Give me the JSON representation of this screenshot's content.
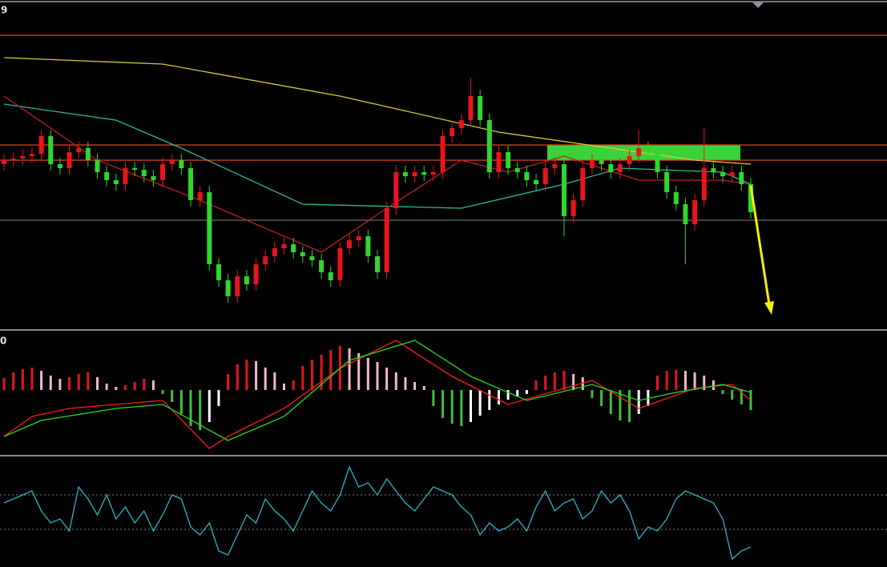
{
  "chart_data": [
    {
      "type": "candlestick",
      "label": "9",
      "ylim": [
        0,
        410
      ],
      "up_color": "#e8141e",
      "down_color": "#2fd62f",
      "open": [
        205,
        210,
        212,
        215,
        218,
        240,
        205,
        200,
        220,
        225,
        210,
        195,
        185,
        180,
        200,
        198,
        190,
        185,
        205,
        210,
        200,
        160,
        170,
        80,
        60,
        40,
        65,
        55,
        80,
        90,
        100,
        105,
        95,
        90,
        85,
        70,
        60,
        100,
        110,
        115,
        90,
        70,
        150,
        195,
        190,
        195,
        192,
        195,
        240,
        250,
        260,
        290,
        260,
        195,
        220,
        200,
        195,
        185,
        180,
        200,
        205,
        140,
        160,
        200,
        210,
        205,
        195,
        205,
        215,
        225,
        220,
        195,
        170,
        155,
        130,
        160,
        200,
        195,
        190,
        195,
        180
      ],
      "high": [
        218,
        220,
        223,
        226,
        248,
        248,
        213,
        228,
        233,
        233,
        218,
        203,
        193,
        208,
        208,
        206,
        198,
        213,
        218,
        218,
        208,
        178,
        178,
        88,
        68,
        73,
        73,
        88,
        98,
        108,
        113,
        113,
        103,
        98,
        93,
        78,
        108,
        118,
        123,
        123,
        98,
        158,
        203,
        203,
        203,
        203,
        203,
        248,
        258,
        268,
        313,
        298,
        268,
        228,
        228,
        208,
        203,
        193,
        208,
        213,
        213,
        168,
        208,
        218,
        218,
        213,
        213,
        223,
        248,
        233,
        228,
        203,
        178,
        163,
        168,
        250,
        208,
        203,
        203,
        203,
        188
      ],
      "low": [
        197,
        202,
        204,
        207,
        210,
        197,
        192,
        192,
        212,
        202,
        187,
        177,
        172,
        172,
        190,
        182,
        177,
        177,
        197,
        192,
        152,
        152,
        72,
        52,
        32,
        32,
        47,
        47,
        72,
        82,
        92,
        87,
        82,
        77,
        62,
        52,
        52,
        92,
        102,
        82,
        62,
        62,
        142,
        182,
        182,
        184,
        184,
        187,
        232,
        242,
        252,
        252,
        187,
        187,
        192,
        187,
        177,
        172,
        172,
        192,
        115,
        132,
        152,
        192,
        197,
        187,
        187,
        197,
        207,
        212,
        187,
        162,
        147,
        80,
        122,
        152,
        187,
        182,
        182,
        172,
        137
      ],
      "close": [
        210,
        212,
        215,
        218,
        240,
        205,
        200,
        220,
        225,
        210,
        195,
        185,
        180,
        200,
        198,
        190,
        185,
        205,
        210,
        200,
        160,
        170,
        80,
        60,
        40,
        65,
        55,
        80,
        90,
        100,
        105,
        95,
        90,
        85,
        70,
        60,
        100,
        110,
        115,
        90,
        70,
        150,
        195,
        190,
        195,
        192,
        195,
        240,
        250,
        260,
        290,
        260,
        195,
        220,
        200,
        195,
        185,
        180,
        200,
        205,
        140,
        160,
        200,
        210,
        205,
        195,
        205,
        215,
        225,
        220,
        195,
        170,
        155,
        130,
        160,
        200,
        195,
        190,
        195,
        180,
        145
      ],
      "levels": [
        366,
        229,
        210,
        135
      ],
      "level_colors": [
        "#e8441c",
        "#e8441c",
        "#e8441c",
        "#6a6a6a"
      ],
      "moving_averages": [
        {
          "color": "#d8c93a",
          "x": [
            0,
            17,
            36,
            53,
            74,
            80
          ],
          "values": [
            338,
            330,
            290,
            245,
            210,
            205
          ]
        },
        {
          "color": "#2fb99a",
          "x": [
            0,
            12,
            19,
            32,
            49,
            60,
            66,
            77,
            80
          ],
          "values": [
            280,
            260,
            225,
            155,
            150,
            180,
            200,
            195,
            180
          ]
        },
        {
          "color": "#c0201c",
          "x": [
            0,
            10,
            21,
            34,
            41,
            49,
            54,
            60,
            68,
            77,
            80
          ],
          "values": [
            290,
            210,
            160,
            95,
            150,
            210,
            195,
            215,
            185,
            185,
            180
          ]
        }
      ]
    },
    {
      "type": "macd",
      "label": "0",
      "ylim": [
        -81,
        74
      ],
      "rise_color": "#e8141e",
      "fall_color": "#f2b8c6",
      "neg_rise_color": "#ffffff",
      "neg_color": "#3fbf3f",
      "histogram": [
        15,
        22,
        26,
        28,
        24,
        18,
        14,
        16,
        20,
        22,
        16,
        8,
        4,
        6,
        10,
        14,
        12,
        -5,
        -15,
        -30,
        -45,
        -50,
        -40,
        -20,
        20,
        32,
        38,
        36,
        28,
        22,
        8,
        12,
        30,
        38,
        44,
        50,
        55,
        52,
        46,
        40,
        35,
        28,
        22,
        16,
        10,
        5,
        -20,
        -35,
        -42,
        -45,
        -40,
        -32,
        -25,
        -18,
        -12,
        -8,
        -5,
        12,
        18,
        22,
        24,
        20,
        16,
        -10,
        -20,
        -30,
        -38,
        -40,
        -30,
        -20,
        18,
        24,
        25,
        24,
        22,
        18,
        12,
        -5,
        -12,
        -18,
        -25
      ],
      "lines": [
        {
          "color": "#ff1a1a",
          "x": [
            0,
            3,
            7,
            17,
            22,
            24,
            30,
            36,
            42,
            48,
            54,
            63,
            68,
            74,
            78,
            80
          ],
          "values": [
            -58,
            -33,
            -23,
            -13,
            -73,
            -58,
            -23,
            27,
            62,
            17,
            -18,
            12,
            -23,
            2,
            7,
            -13
          ]
        },
        {
          "color": "#22dd22",
          "x": [
            0,
            4,
            12,
            17,
            24,
            30,
            37,
            44,
            50,
            56,
            63,
            68,
            72,
            77,
            80
          ],
          "values": [
            -58,
            -38,
            -23,
            -18,
            -63,
            -33,
            37,
            62,
            17,
            -13,
            7,
            -13,
            -3,
            7,
            -3
          ]
        }
      ]
    },
    {
      "type": "oscillator",
      "ylim": [
        0,
        138
      ],
      "color": "#2fb4c8",
      "levels": [
        90,
        47
      ],
      "values": [
        80,
        85,
        90,
        95,
        70,
        55,
        60,
        45,
        100,
        85,
        65,
        90,
        60,
        75,
        55,
        70,
        45,
        65,
        90,
        85,
        50,
        40,
        55,
        20,
        15,
        40,
        65,
        55,
        85,
        70,
        60,
        45,
        70,
        95,
        80,
        70,
        90,
        125,
        100,
        105,
        90,
        110,
        95,
        80,
        70,
        85,
        100,
        95,
        90,
        75,
        65,
        40,
        55,
        45,
        50,
        60,
        45,
        75,
        95,
        70,
        80,
        85,
        60,
        70,
        95,
        80,
        90,
        70,
        35,
        50,
        45,
        60,
        85,
        95,
        90,
        85,
        80,
        60,
        10,
        20,
        25
      ]
    }
  ]
}
